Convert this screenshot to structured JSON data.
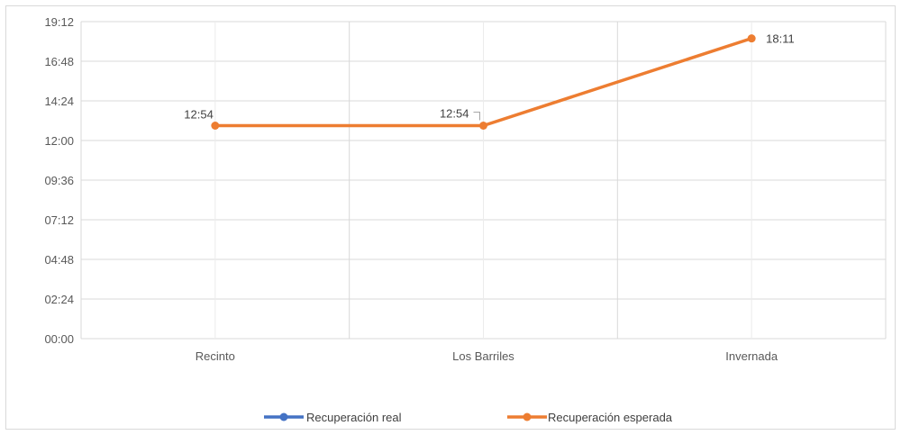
{
  "chart_data": {
    "type": "line",
    "title": "",
    "xlabel": "",
    "ylabel": "",
    "categories": [
      "Recinto",
      "Los Barriles",
      "Invernada"
    ],
    "y_ticks": [
      "00:00",
      "02:24",
      "04:48",
      "07:12",
      "09:36",
      "12:00",
      "14:24",
      "16:48",
      "19:12"
    ],
    "ylim": [
      "00:00",
      "19:12"
    ],
    "grid": true,
    "legend_position": "bottom",
    "series": [
      {
        "name": "Recuperación real",
        "color": "#4472c4",
        "values": [
          null,
          null,
          null
        ]
      },
      {
        "name": "Recuperación esperada",
        "color": "#ed7d31",
        "values": [
          "12:54",
          "12:54",
          "18:11"
        ],
        "data_labels": [
          "12:54",
          "12:54",
          "18:11"
        ]
      }
    ]
  }
}
